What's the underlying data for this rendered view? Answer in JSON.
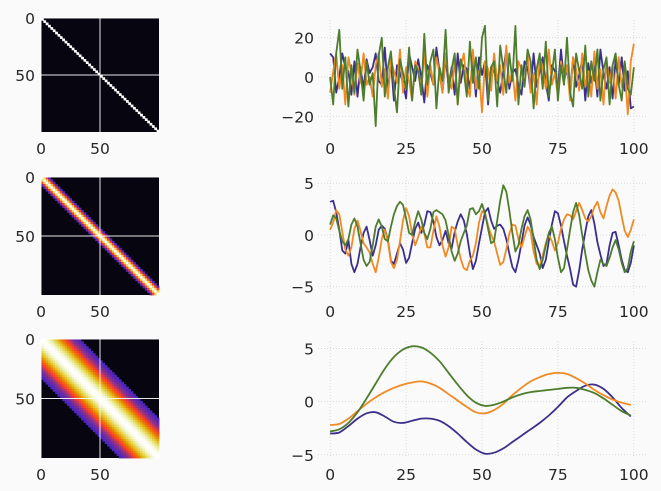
{
  "chart_data": [
    {
      "type": "heatmap",
      "description_in_image": "",
      "kernel_width_index": 1,
      "matrix_size": 100,
      "band_half_width": 0.5,
      "colormap": "CMRmap",
      "xticks": [
        0,
        50
      ],
      "yticks": [
        0,
        50
      ],
      "xlim": [
        0,
        100
      ],
      "ylim": [
        100,
        0
      ],
      "grid": true
    },
    {
      "type": "line",
      "xticks": [
        0,
        25,
        50,
        75,
        100
      ],
      "yticks": [
        -20,
        0,
        20
      ],
      "xlim": [
        -4,
        104
      ],
      "ylim": [
        -28,
        29
      ],
      "grid": true,
      "series": [
        {
          "color": "#3b2f8c",
          "values": [
            12,
            10,
            -8,
            0,
            12,
            5,
            3,
            -9,
            8,
            -10,
            5,
            -6,
            9,
            2,
            5,
            12,
            -2,
            -4,
            15,
            -7,
            8,
            -12,
            6,
            2,
            -3,
            -11,
            12,
            5,
            -2,
            9,
            0,
            -13,
            6,
            2,
            -4,
            15,
            3,
            -8,
            10,
            -5,
            5,
            -9,
            12,
            -3,
            6,
            4,
            -6,
            8,
            -10,
            10,
            1,
            8,
            -14,
            5,
            3,
            -2,
            -8,
            3,
            14,
            -6,
            2,
            4,
            -4,
            -9,
            8,
            5,
            -7,
            12,
            -5,
            3,
            10,
            -3,
            -12,
            6,
            3,
            -6,
            14,
            -2,
            4,
            -8,
            10,
            -5,
            1,
            9,
            -12,
            7,
            -3,
            6,
            -10,
            14,
            2,
            -6,
            5,
            -11,
            9,
            -4,
            10,
            -7,
            3,
            -16,
            -15
          ]
        },
        {
          "color": "#f08a24",
          "values": [
            -8,
            3,
            12,
            -6,
            6,
            -14,
            10,
            2,
            -9,
            7,
            -3,
            12,
            -4,
            0,
            -10,
            6,
            12,
            -5,
            4,
            -11,
            9,
            3,
            -3,
            14,
            -8,
            5,
            -2,
            -12,
            8,
            4,
            -6,
            13,
            -10,
            6,
            -4,
            10,
            2,
            -8,
            12,
            -2,
            -6,
            8,
            -14,
            5,
            12,
            -4,
            -10,
            14,
            -6,
            3,
            -18,
            8,
            4,
            -7,
            12,
            -2,
            6,
            -9,
            16,
            -3,
            3,
            -12,
            8,
            4,
            -5,
            12,
            -8,
            2,
            -14,
            10,
            5,
            -6,
            14,
            -4,
            2,
            -10,
            8,
            -2,
            6,
            -12,
            10,
            4,
            -7,
            12,
            -5,
            3,
            -10,
            13,
            -6,
            4,
            -14,
            9,
            -3,
            6,
            -11,
            10,
            -5,
            4,
            -19,
            8,
            17
          ]
        },
        {
          "color": "#4e7d2d",
          "values": [
            0,
            -14,
            12,
            24,
            -6,
            10,
            -15,
            6,
            -8,
            14,
            3,
            -12,
            8,
            -4,
            2,
            -25,
            11,
            20,
            -10,
            5,
            13,
            -5,
            -18,
            9,
            2,
            -6,
            15,
            -12,
            6,
            3,
            -9,
            22,
            -4,
            8,
            14,
            -16,
            5,
            -2,
            24,
            -8,
            4,
            12,
            -14,
            9,
            3,
            -10,
            18,
            -3,
            10,
            -6,
            20,
            26,
            -12,
            5,
            8,
            -15,
            16,
            4,
            -8,
            12,
            -2,
            26,
            -14,
            6,
            -5,
            14,
            8,
            -16,
            4,
            12,
            -6,
            18,
            -10,
            2,
            14,
            -12,
            6,
            -4,
            20,
            -8,
            -15,
            12,
            3,
            -6,
            16,
            -10,
            8,
            -2,
            14,
            -12,
            4,
            10,
            -14,
            6,
            12,
            -4,
            -12,
            8,
            -6,
            -9,
            5
          ]
        }
      ]
    },
    {
      "type": "heatmap",
      "kernel_width_index": 2,
      "matrix_size": 100,
      "band_half_width": 3,
      "colormap": "CMRmap",
      "xticks": [
        0,
        50
      ],
      "yticks": [
        0,
        50
      ],
      "xlim": [
        0,
        100
      ],
      "ylim": [
        100,
        0
      ],
      "grid": true
    },
    {
      "type": "line",
      "xticks": [
        0,
        25,
        50,
        75,
        100
      ],
      "yticks": [
        -5,
        0,
        5
      ],
      "xlim": [
        -4,
        104
      ],
      "ylim": [
        -5.8,
        5.6
      ],
      "grid": true,
      "series": [
        {
          "color": "#3b2f8c",
          "values": [
            3.2,
            3.3,
            2.2,
            0.5,
            -1.5,
            -1.8,
            -0.5,
            -2.8,
            -3.6,
            -2.8,
            -1.2,
            0.2,
            0.8,
            -0.5,
            -2.0,
            -1.0,
            0.5,
            0.9,
            0.6,
            -0.5,
            -2.5,
            -2.8,
            -1.8,
            -0.8,
            -1.4,
            -2.7,
            -2.2,
            -0.8,
            0.6,
            1.2,
            0.2,
            1.0,
            2.3,
            2.2,
            1.3,
            -0.2,
            -1.0,
            -0.5,
            0.4,
            -0.8,
            -1.3,
            0.3,
            1.3,
            2.0,
            1.4,
            0.1,
            -1.8,
            -3.3,
            -2.5,
            -0.8,
            0.7,
            2.2,
            2.6,
            1.4,
            0.6,
            0.9,
            1.0,
            0.6,
            -0.4,
            -1.8,
            -3.1,
            -3.6,
            -2.4,
            -0.8,
            0.9,
            1.7,
            1.0,
            -0.2,
            -1.0,
            -1.8,
            -3.2,
            -2.4,
            -0.6,
            1.0,
            2.3,
            2.1,
            0.9,
            -0.6,
            -2.0,
            -3.3,
            -4.8,
            -5.0,
            -3.4,
            -1.4,
            0.3,
            1.8,
            2.4,
            1.1,
            -0.7,
            -1.9,
            -3.0,
            -2.8,
            -1.0,
            0.2,
            0.3,
            -1.0,
            -2.4,
            -3.4,
            -3.6,
            -2.7,
            -1.0
          ]
        },
        {
          "color": "#f08a24",
          "values": [
            0.5,
            1.2,
            2.4,
            2.0,
            0.3,
            -1.4,
            -2.0,
            -1.2,
            0.6,
            1.4,
            0.4,
            -0.8,
            -1.2,
            -1.7,
            -2.8,
            -3.6,
            -2.2,
            -0.4,
            0.5,
            -0.6,
            -2.6,
            -3.2,
            -2.4,
            -0.6,
            1.4,
            2.6,
            1.8,
            0.1,
            -1.0,
            -0.2,
            0.8,
            0.2,
            -1.2,
            -1.2,
            0.4,
            1.8,
            0.8,
            -1.0,
            -2.1,
            -1.2,
            0.8,
            0.6,
            -1.0,
            -2.3,
            -3.2,
            -3.4,
            -2.5,
            -2.0,
            -0.8,
            1.2,
            2.3,
            2.1,
            0.9,
            0.0,
            -0.6,
            -1.8,
            -2.9,
            -2.6,
            -1.4,
            0.1,
            1.0,
            0.9,
            -0.4,
            -1.2,
            -0.2,
            0.8,
            0.3,
            -1.6,
            -2.8,
            -3.0,
            -2.0,
            -0.8,
            0.0,
            -0.6,
            -1.5,
            -0.8,
            0.6,
            1.5,
            2.0,
            1.9,
            1.5,
            2.3,
            3.1,
            2.4,
            1.6,
            1.3,
            1.8,
            2.7,
            3.2,
            2.2,
            1.6,
            2.8,
            3.8,
            4.4,
            4.1,
            3.3,
            1.8,
            0.4,
            -0.2,
            0.5,
            1.5
          ]
        },
        {
          "color": "#4e7d2d",
          "values": [
            1.0,
            1.9,
            1.6,
            0.4,
            -0.6,
            -1.0,
            -0.4,
            1.0,
            1.6,
            0.8,
            -0.8,
            -2.4,
            -3.0,
            -2.6,
            -1.0,
            0.8,
            1.5,
            0.8,
            -0.4,
            -0.6,
            0.8,
            2.0,
            2.8,
            3.2,
            2.9,
            1.6,
            0.2,
            0.0,
            1.3,
            2.3,
            1.5,
            0.2,
            -0.4,
            0.6,
            2.2,
            2.4,
            2.2,
            2.0,
            1.4,
            0.0,
            -1.6,
            -2.5,
            -1.8,
            -0.6,
            0.2,
            0.9,
            2.5,
            2.6,
            2.0,
            2.3,
            3.0,
            2.1,
            0.6,
            -0.8,
            -0.6,
            1.4,
            3.3,
            4.8,
            4.2,
            2.4,
            0.2,
            -1.6,
            -1.0,
            0.6,
            1.8,
            2.4,
            1.5,
            -0.4,
            -2.4,
            -3.3,
            -2.4,
            -1.0,
            0.2,
            0.8,
            -0.4,
            -2.2,
            -3.6,
            -3.2,
            -1.4,
            0.5,
            2.2,
            3.1,
            1.9,
            0.0,
            -1.8,
            -3.4,
            -4.4,
            -5.0,
            -3.6,
            -2.4,
            -2.8,
            -3.0,
            -2.2,
            -1.2,
            -0.5,
            -1.4,
            -2.7,
            -3.6,
            -3.2,
            -1.6,
            -0.6
          ]
        }
      ]
    },
    {
      "type": "heatmap",
      "kernel_width_index": 3,
      "matrix_size": 100,
      "band_half_width": 15,
      "colormap": "CMRmap",
      "xticks": [
        0,
        50
      ],
      "yticks": [
        0,
        50
      ],
      "xlim": [
        0,
        100
      ],
      "ylim": [
        100,
        0
      ],
      "grid": true
    },
    {
      "type": "line",
      "xticks": [
        0,
        25,
        50,
        75,
        100
      ],
      "yticks": [
        -5,
        0,
        5
      ],
      "xlim": [
        -4,
        104
      ],
      "ylim": [
        -5.3,
        5.7
      ],
      "grid": true,
      "series": [
        {
          "color": "#3b2f8c",
          "x": [
            0,
            3,
            6,
            9,
            12,
            15,
            18,
            21,
            24,
            27,
            30,
            33,
            36,
            39,
            42,
            45,
            48,
            51,
            54,
            57,
            60,
            63,
            66,
            69,
            72,
            75,
            78,
            81,
            84,
            87,
            90,
            93,
            96,
            99
          ],
          "values": [
            -3.0,
            -2.9,
            -2.3,
            -1.6,
            -1.1,
            -1.0,
            -1.4,
            -1.9,
            -2.0,
            -1.8,
            -1.6,
            -1.6,
            -1.8,
            -2.3,
            -3.0,
            -3.8,
            -4.5,
            -4.9,
            -4.8,
            -4.4,
            -3.8,
            -3.2,
            -2.6,
            -2.0,
            -1.3,
            -0.5,
            0.4,
            1.0,
            1.5,
            1.6,
            1.2,
            0.4,
            -0.6,
            -1.4
          ]
        },
        {
          "color": "#f08a24",
          "x": [
            0,
            3,
            6,
            9,
            12,
            15,
            18,
            21,
            24,
            27,
            30,
            33,
            36,
            39,
            42,
            45,
            48,
            51,
            54,
            57,
            60,
            63,
            66,
            69,
            72,
            75,
            78,
            81,
            84,
            87,
            90,
            93,
            96,
            99
          ],
          "values": [
            -2.2,
            -2.1,
            -1.6,
            -0.9,
            -0.2,
            0.4,
            0.9,
            1.3,
            1.6,
            1.8,
            1.9,
            1.7,
            1.3,
            0.7,
            0.1,
            -0.5,
            -1.0,
            -1.1,
            -0.8,
            -0.2,
            0.6,
            1.3,
            1.9,
            2.3,
            2.6,
            2.7,
            2.6,
            2.2,
            1.7,
            1.1,
            0.6,
            0.2,
            -0.1,
            -0.3
          ]
        },
        {
          "color": "#4e7d2d",
          "x": [
            0,
            3,
            6,
            9,
            12,
            15,
            18,
            21,
            24,
            27,
            30,
            33,
            36,
            39,
            42,
            45,
            48,
            51,
            54,
            57,
            60,
            63,
            66,
            69,
            72,
            75,
            78,
            81,
            84,
            87,
            90,
            93,
            96,
            99
          ],
          "values": [
            -2.8,
            -2.6,
            -2.0,
            -1.0,
            0.3,
            1.7,
            3.1,
            4.2,
            4.9,
            5.2,
            5.1,
            4.6,
            3.8,
            2.7,
            1.6,
            0.6,
            -0.1,
            -0.4,
            -0.3,
            0.0,
            0.4,
            0.7,
            0.9,
            1.0,
            1.1,
            1.2,
            1.3,
            1.3,
            1.1,
            0.8,
            0.3,
            -0.3,
            -0.9,
            -1.3
          ]
        }
      ]
    }
  ]
}
